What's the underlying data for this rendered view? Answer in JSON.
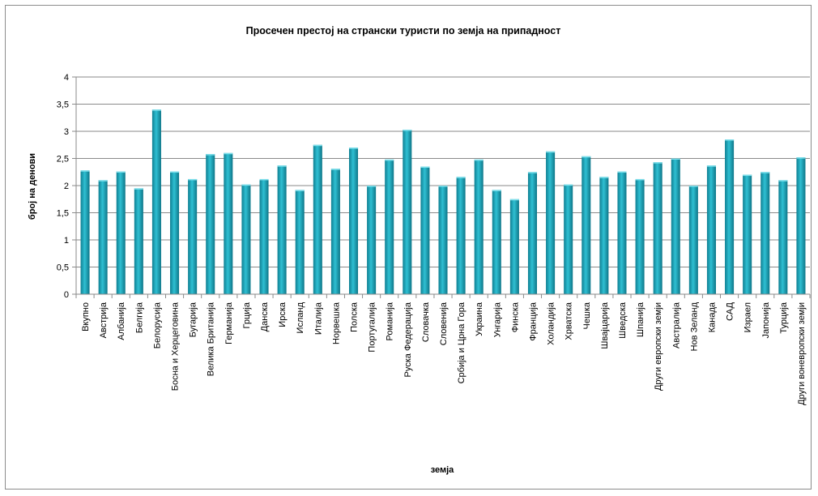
{
  "chart_data": {
    "type": "bar",
    "title": "Просечен престој на странски туристи  по земја на припадност",
    "xlabel": "земја",
    "ylabel": "број на денови",
    "ylim": [
      0,
      4
    ],
    "yticks": [
      "0",
      "0,5",
      "1",
      "1,5",
      "2",
      "2,5",
      "3",
      "3,5",
      "4"
    ],
    "grid": true,
    "bar_color": "#1aa3b8",
    "categories": [
      "Вкупно",
      "Австрија",
      "Албанија",
      "Белгија",
      "Белорусија",
      "Босна и Херцеговина",
      "Бугарија",
      "Велика Британија",
      "Германија",
      "Грција",
      "Данска",
      "Ирска",
      "Исланд",
      "Италија",
      "Норвешка",
      "Полска",
      "Португалија",
      "Романија",
      "Руска Федерација",
      "Словачка",
      "Словенија",
      "Србија и Црна Гора",
      "Украина",
      "Унгарија",
      "Финска",
      "Франција",
      "Холандија",
      "Хрватска",
      "Чешка",
      "Швајцарија",
      "Шведска",
      "Шпанија",
      "Други европски земји",
      "Австралија",
      "Нов Зеланд",
      "Канада",
      "САД",
      "Израел",
      "Јапонија",
      "Турција",
      "Други воневропски земји"
    ],
    "values": [
      2.28,
      2.1,
      2.26,
      1.95,
      3.4,
      2.26,
      2.12,
      2.58,
      2.6,
      2.02,
      2.12,
      2.37,
      1.92,
      2.75,
      2.31,
      2.7,
      2.0,
      2.48,
      3.03,
      2.35,
      2.0,
      2.16,
      2.48,
      1.92,
      1.75,
      2.25,
      2.63,
      2.02,
      2.54,
      2.16,
      2.26,
      2.12,
      2.43,
      2.5,
      2.0,
      2.37,
      2.85,
      2.2,
      2.25,
      2.1,
      2.52
    ]
  }
}
